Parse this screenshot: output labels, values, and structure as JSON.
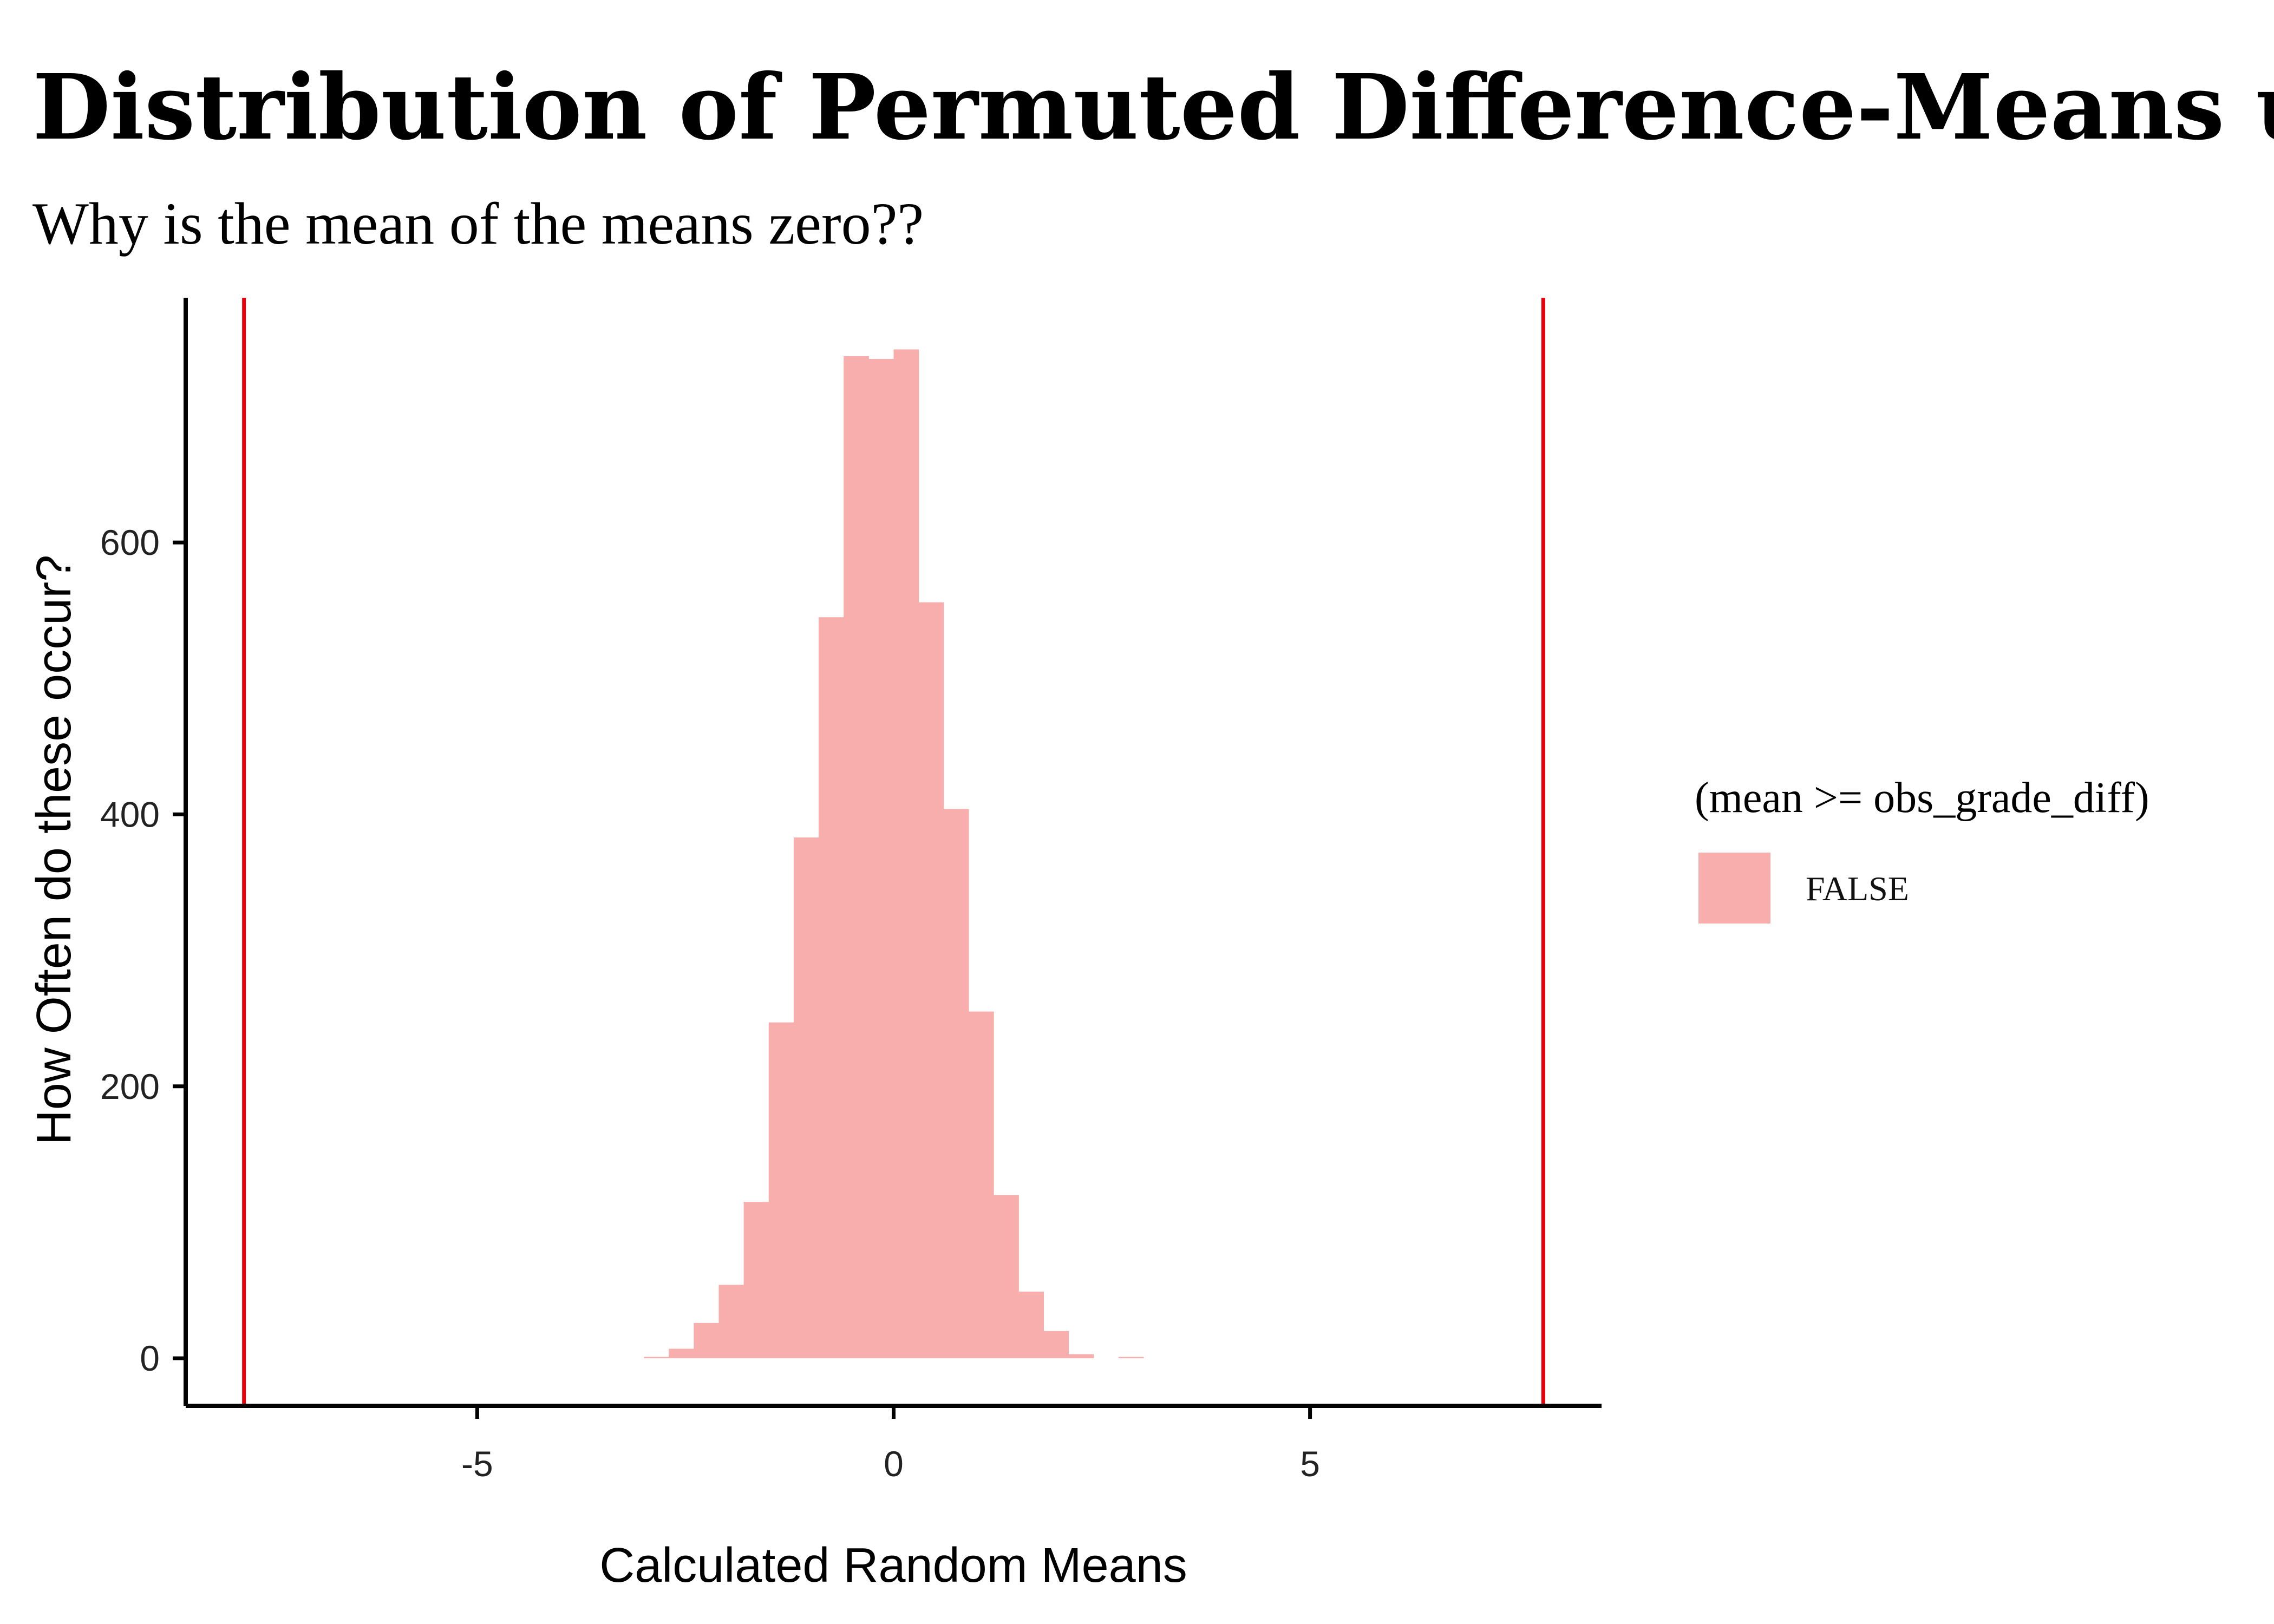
{
  "chart_data": {
    "type": "bar",
    "title": "Distribution of Permuted Difference-Means under",
    "subtitle": "Why is the mean of the means zero??",
    "xlabel": "Calculated Random Means",
    "ylabel": "How Often do these occur?",
    "xlim": [
      -8.5,
      8.5
    ],
    "ylim": [
      -35,
      780
    ],
    "x_ticks": [
      {
        "value": -5,
        "label": "-5"
      },
      {
        "value": 0,
        "label": "0"
      },
      {
        "value": 5,
        "label": "5"
      }
    ],
    "y_ticks": [
      {
        "value": 0,
        "label": "0"
      },
      {
        "value": 200,
        "label": "200"
      },
      {
        "value": 400,
        "label": "400"
      },
      {
        "value": 600,
        "label": "600"
      }
    ],
    "grid": false,
    "legend": {
      "position": "right",
      "title": "(mean >= obs_grade_diff)",
      "entries": [
        {
          "label": "FALSE",
          "color": "#f8aeac"
        }
      ]
    },
    "bar_color": "#f8aeac",
    "reference_line_color": "#e8000b",
    "reference_lines": [
      -7.8,
      7.8
    ],
    "bins": [
      {
        "x_start": -3.0,
        "x_end": -2.7,
        "count": 1
      },
      {
        "x_start": -2.7,
        "x_end": -2.4,
        "count": 7
      },
      {
        "x_start": -2.4,
        "x_end": -2.1,
        "count": 26
      },
      {
        "x_start": -2.1,
        "x_end": -1.8,
        "count": 54
      },
      {
        "x_start": -1.8,
        "x_end": -1.5,
        "count": 115
      },
      {
        "x_start": -1.5,
        "x_end": -1.2,
        "count": 247
      },
      {
        "x_start": -1.2,
        "x_end": -0.9,
        "count": 383
      },
      {
        "x_start": -0.9,
        "x_end": -0.6,
        "count": 545
      },
      {
        "x_start": -0.6,
        "x_end": -0.3,
        "count": 737
      },
      {
        "x_start": -0.3,
        "x_end": 0.0,
        "count": 735
      },
      {
        "x_start": 0.0,
        "x_end": 0.3,
        "count": 742
      },
      {
        "x_start": 0.3,
        "x_end": 0.6,
        "count": 556
      },
      {
        "x_start": 0.6,
        "x_end": 0.9,
        "count": 404
      },
      {
        "x_start": 0.9,
        "x_end": 1.2,
        "count": 255
      },
      {
        "x_start": 1.2,
        "x_end": 1.5,
        "count": 120
      },
      {
        "x_start": 1.5,
        "x_end": 1.8,
        "count": 49
      },
      {
        "x_start": 1.8,
        "x_end": 2.1,
        "count": 20
      },
      {
        "x_start": 2.1,
        "x_end": 2.4,
        "count": 3
      },
      {
        "x_start": 2.4,
        "x_end": 2.7,
        "count": 0
      },
      {
        "x_start": 2.7,
        "x_end": 3.0,
        "count": 1
      }
    ]
  }
}
